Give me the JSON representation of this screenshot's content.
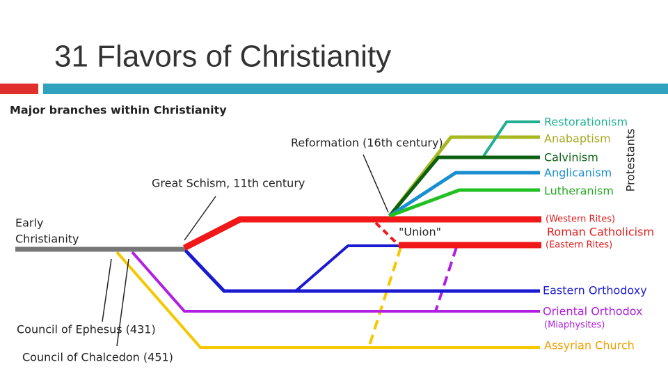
{
  "header": {
    "title": "31 Flavors of Christianity"
  },
  "diagram": {
    "heading": "Major branches within Christianity",
    "root": [
      "Early",
      "Christianity"
    ],
    "events": {
      "great_schism": "Great Schism, 11th century",
      "reformation": "Reformation (16th century)",
      "ephesus": "Council of Ephesus (431)",
      "chalcedon": "Council of Chalcedon (451)",
      "union": "\"Union\""
    },
    "protestant_group": "Protestants",
    "protestants": [
      "Restorationism",
      "Anabaptism",
      "Calvinism",
      "Anglicanism",
      "Lutheranism"
    ],
    "catholic": {
      "western": "(Western Rites)",
      "name": "Roman Catholicism",
      "eastern": "(Eastern Rites)"
    },
    "eastern_orthodoxy": "Eastern Orthodoxy",
    "oriental": {
      "name": "Oriental Orthodox",
      "note": "(Miaphysites)"
    },
    "assyrian": "Assyrian Church"
  }
}
